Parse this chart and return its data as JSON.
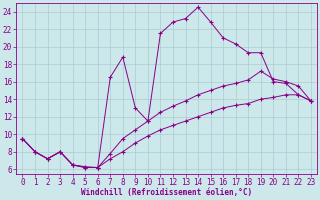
{
  "xlabel": "Windchill (Refroidissement éolien,°C)",
  "bg_color": "#cce8ea",
  "line_color": "#880088",
  "grid_color": "#aaccd0",
  "xlim": [
    -0.5,
    23.5
  ],
  "ylim": [
    5.5,
    25.0
  ],
  "yticks": [
    6,
    8,
    10,
    12,
    14,
    16,
    18,
    20,
    22,
    24
  ],
  "xticks": [
    0,
    1,
    2,
    3,
    4,
    5,
    6,
    7,
    8,
    9,
    10,
    11,
    12,
    13,
    14,
    15,
    16,
    17,
    18,
    19,
    20,
    21,
    22,
    23
  ],
  "series1": [
    [
      0,
      9.5
    ],
    [
      1,
      8.0
    ],
    [
      2,
      7.2
    ],
    [
      3,
      8.0
    ],
    [
      4,
      6.5
    ],
    [
      5,
      6.3
    ],
    [
      6,
      6.2
    ],
    [
      7,
      16.5
    ],
    [
      8,
      18.8
    ],
    [
      9,
      13.0
    ],
    [
      10,
      11.5
    ],
    [
      11,
      21.5
    ],
    [
      12,
      22.8
    ],
    [
      13,
      23.2
    ],
    [
      14,
      24.5
    ],
    [
      15,
      22.8
    ],
    [
      16,
      21.0
    ],
    [
      17,
      20.3
    ],
    [
      18,
      19.3
    ],
    [
      19,
      19.3
    ],
    [
      20,
      16.0
    ],
    [
      21,
      15.8
    ],
    [
      22,
      14.5
    ],
    [
      23,
      13.8
    ]
  ],
  "series2": [
    [
      0,
      9.5
    ],
    [
      1,
      8.0
    ],
    [
      2,
      7.2
    ],
    [
      3,
      8.0
    ],
    [
      4,
      6.5
    ],
    [
      5,
      6.2
    ],
    [
      6,
      6.2
    ],
    [
      7,
      7.8
    ],
    [
      8,
      9.5
    ],
    [
      9,
      10.5
    ],
    [
      10,
      11.5
    ],
    [
      11,
      12.5
    ],
    [
      12,
      13.2
    ],
    [
      13,
      13.8
    ],
    [
      14,
      14.5
    ],
    [
      15,
      15.0
    ],
    [
      16,
      15.5
    ],
    [
      17,
      15.8
    ],
    [
      18,
      16.2
    ],
    [
      19,
      17.2
    ],
    [
      20,
      16.3
    ],
    [
      21,
      16.0
    ],
    [
      22,
      15.5
    ],
    [
      23,
      13.8
    ]
  ],
  "series3": [
    [
      0,
      9.5
    ],
    [
      1,
      8.0
    ],
    [
      2,
      7.2
    ],
    [
      3,
      8.0
    ],
    [
      4,
      6.5
    ],
    [
      5,
      6.2
    ],
    [
      6,
      6.2
    ],
    [
      7,
      7.2
    ],
    [
      8,
      8.0
    ],
    [
      9,
      9.0
    ],
    [
      10,
      9.8
    ],
    [
      11,
      10.5
    ],
    [
      12,
      11.0
    ],
    [
      13,
      11.5
    ],
    [
      14,
      12.0
    ],
    [
      15,
      12.5
    ],
    [
      16,
      13.0
    ],
    [
      17,
      13.3
    ],
    [
      18,
      13.5
    ],
    [
      19,
      14.0
    ],
    [
      20,
      14.2
    ],
    [
      21,
      14.5
    ],
    [
      22,
      14.5
    ],
    [
      23,
      13.8
    ]
  ],
  "tick_fontsize": 5.5,
  "xlabel_fontsize": 5.5
}
